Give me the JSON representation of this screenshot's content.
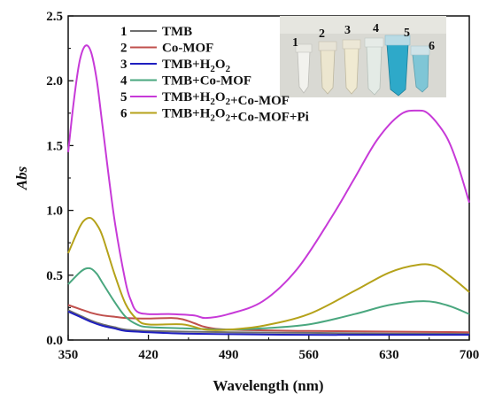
{
  "chart_data": {
    "type": "line",
    "xlabel": "Wavelength (nm)",
    "ylabel": "Abs",
    "xlim": [
      350,
      700
    ],
    "ylim": [
      0,
      2.5
    ],
    "x_ticks": [
      "350",
      "420",
      "490",
      "560",
      "630",
      "700"
    ],
    "y_ticks": [
      "0.0",
      "0.5",
      "1.0",
      "1.5",
      "2.0",
      "2.5"
    ],
    "grid": false,
    "legend_position": "top-left",
    "series": [
      {
        "name": "TMB",
        "number": "1",
        "color": "#6e6e6e",
        "x": [
          350,
          360,
          370,
          380,
          390,
          400,
          420,
          450,
          490,
          560,
          630,
          700
        ],
        "y": [
          0.23,
          0.19,
          0.15,
          0.12,
          0.1,
          0.08,
          0.07,
          0.065,
          0.06,
          0.055,
          0.05,
          0.05
        ]
      },
      {
        "name": "Co-MOF",
        "number": "2",
        "color": "#c0504d",
        "x": [
          350,
          360,
          370,
          380,
          390,
          400,
          420,
          440,
          450,
          460,
          470,
          490,
          560,
          630,
          700
        ],
        "y": [
          0.27,
          0.24,
          0.21,
          0.19,
          0.18,
          0.17,
          0.165,
          0.17,
          0.16,
          0.13,
          0.1,
          0.08,
          0.07,
          0.065,
          0.06
        ]
      },
      {
        "name": "TMB+H2O2",
        "number": "3",
        "color": "#1f1fbf",
        "x": [
          350,
          360,
          370,
          380,
          390,
          400,
          420,
          450,
          490,
          560,
          630,
          700
        ],
        "y": [
          0.22,
          0.18,
          0.14,
          0.11,
          0.09,
          0.07,
          0.06,
          0.05,
          0.045,
          0.04,
          0.04,
          0.04
        ]
      },
      {
        "name": "TMB+Co-MOF",
        "number": "4",
        "color": "#4aa77f",
        "x": [
          350,
          360,
          365,
          370,
          375,
          380,
          390,
          400,
          410,
          420,
          450,
          490,
          520,
          560,
          600,
          630,
          660,
          680,
          700
        ],
        "y": [
          0.43,
          0.52,
          0.55,
          0.55,
          0.51,
          0.44,
          0.3,
          0.18,
          0.12,
          0.1,
          0.09,
          0.08,
          0.09,
          0.12,
          0.2,
          0.27,
          0.3,
          0.27,
          0.2
        ]
      },
      {
        "name": "TMB+H2O2+Co-MOF",
        "number": "5",
        "color": "#c73ad8",
        "x": [
          350,
          355,
          360,
          365,
          370,
          375,
          380,
          390,
          400,
          405,
          410,
          420,
          440,
          460,
          470,
          490,
          520,
          550,
          580,
          600,
          620,
          640,
          655,
          665,
          680,
          690,
          700
        ],
        "y": [
          1.45,
          1.85,
          2.15,
          2.27,
          2.22,
          2.0,
          1.65,
          0.95,
          0.45,
          0.3,
          0.22,
          0.2,
          0.2,
          0.19,
          0.17,
          0.2,
          0.3,
          0.55,
          0.95,
          1.25,
          1.55,
          1.74,
          1.77,
          1.74,
          1.57,
          1.35,
          1.06
        ]
      },
      {
        "name": "TMB+H2O2+Co-MOF+Pi",
        "number": "6",
        "color": "#b5a21a",
        "x": [
          350,
          360,
          365,
          370,
          375,
          380,
          390,
          400,
          410,
          420,
          450,
          470,
          490,
          520,
          560,
          600,
          630,
          655,
          670,
          685,
          700
        ],
        "y": [
          0.67,
          0.87,
          0.93,
          0.94,
          0.89,
          0.8,
          0.52,
          0.28,
          0.16,
          0.12,
          0.12,
          0.08,
          0.08,
          0.11,
          0.2,
          0.38,
          0.52,
          0.58,
          0.57,
          0.48,
          0.37
        ]
      }
    ]
  },
  "inset": {
    "vial_numbers": [
      "1",
      "2",
      "3",
      "4",
      "5",
      "6"
    ]
  }
}
